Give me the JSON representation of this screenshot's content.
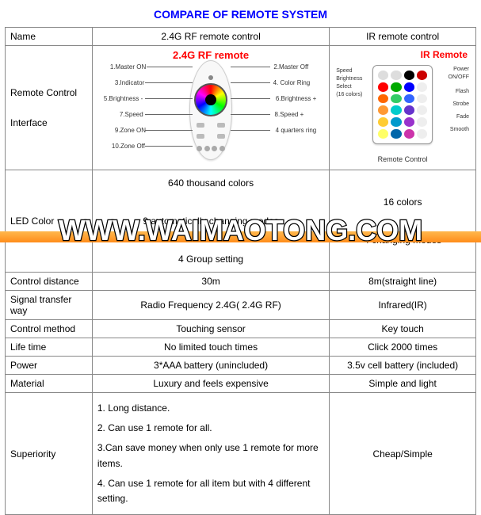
{
  "title": "COMPARE OF REMOTE SYSTEM",
  "colors": {
    "title": "#0000ff",
    "remote_label": "#ff0000",
    "border": "#888888",
    "background": "#ffffff",
    "watermark_bar_top": "#ffb84d",
    "watermark_bar_bottom": "#ff8c1a",
    "watermark_text_fill": "#ffffff",
    "watermark_text_stroke": "#000000"
  },
  "table": {
    "header": {
      "name": "Name",
      "rf": "2.4G RF remote control",
      "ir": "IR remote control"
    },
    "rows": [
      {
        "name": "Remote Control\n\nInterface",
        "rf_image": {
          "label": "2.4G RF remote",
          "callouts_left": [
            "1.Master ON",
            "3.Indicator",
            "5.Brightness -",
            "7.Speed -",
            "9.Zone ON",
            "10.Zone Off"
          ],
          "callouts_right": [
            "2.Master Off",
            "4. Color Ring",
            "6.Brightness +",
            "8.Speed +",
            "4 quarters ring"
          ]
        },
        "ir_image": {
          "label": "IR Remote",
          "caption": "Remote Control",
          "callouts_left": [
            "Speed",
            "Brightness",
            "Select",
            "(16 colors)"
          ],
          "callouts_right": [
            "Power",
            "ON/OFF",
            "Flash",
            "Strobe",
            "Fade",
            "Smooth"
          ],
          "button_colors": [
            [
              "#dddddd",
              "#dddddd",
              "#000000",
              "#cc0000"
            ],
            [
              "#ff0000",
              "#00aa00",
              "#0000ff",
              "#eeeeee"
            ],
            [
              "#ff6600",
              "#33cc66",
              "#3366ff",
              "#eeeeee"
            ],
            [
              "#ff9933",
              "#00cccc",
              "#6633cc",
              "#eeeeee"
            ],
            [
              "#ffcc33",
              "#0099cc",
              "#9933cc",
              "#eeeeee"
            ],
            [
              "#ffff66",
              "#0066aa",
              "#cc33aa",
              "#eeeeee"
            ]
          ]
        }
      },
      {
        "name": "LED Color",
        "rf": "640 thousand colors\n\n9 automatically changing modes\n\n4 Group setting",
        "ir": "16 colors\n\n4 changing modes"
      },
      {
        "name": "Control distance",
        "rf": "30m",
        "ir": "8m(straight line)"
      },
      {
        "name": "Signal transfer way",
        "rf": "Radio Frequency 2.4G( 2.4G RF)",
        "ir": "Infrared(IR)"
      },
      {
        "name": "Control method",
        "rf": "Touching sensor",
        "ir": "Key touch"
      },
      {
        "name": "Life time",
        "rf": "No limited touch times",
        "ir": "Click 2000 times"
      },
      {
        "name": "Power",
        "rf": "3*AAA battery (unincluded)",
        "ir": "3.5v cell battery (included)"
      },
      {
        "name": "Material",
        "rf": "Luxury and feels expensive",
        "ir": "Simple and light"
      },
      {
        "name": "Superiority",
        "rf_list": [
          "1. Long distance.",
          "2. Can use 1 remote for all.",
          "3.Can save money when only use 1 remote for more items.",
          "4. Can use 1 remote for all item but with 4 different setting."
        ],
        "ir": "Cheap/Simple"
      }
    ]
  },
  "watermark": "WWW.WAIMAOTONG.COM"
}
